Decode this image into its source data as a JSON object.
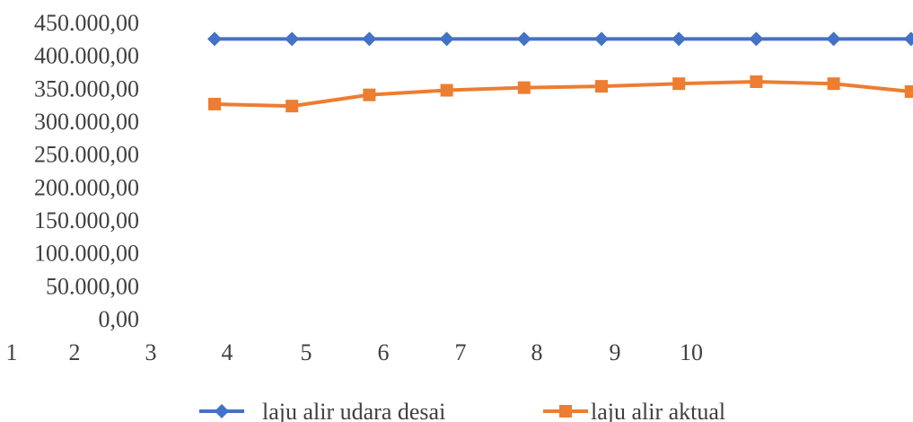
{
  "chart_data": {
    "type": "line",
    "title": "",
    "xlabel": "",
    "ylabel": "",
    "x_tick_labels": [
      "1",
      "2",
      "3",
      "4",
      "5",
      "6",
      "7",
      "8",
      "9",
      "10"
    ],
    "y_tick_labels": [
      "0,00",
      "50.000,00",
      "100.000,00",
      "150.000,00",
      "200.000,00",
      "250.000,00",
      "300.000,00",
      "350.000,00",
      "400.000,00",
      "450.000,00"
    ],
    "ylim": [
      0,
      450000
    ],
    "grid": false,
    "legend_position": "bottom",
    "series": [
      {
        "name": "laju alir udara desai",
        "color": "#4472C4",
        "marker": "diamond",
        "values": [
          425000,
          425000,
          425000,
          425000,
          425000,
          425000,
          425000,
          425000,
          425000,
          425000
        ]
      },
      {
        "name": "laju alir aktual",
        "color": "#ED7D31",
        "marker": "square",
        "values": [
          326000,
          323000,
          340000,
          347000,
          351000,
          353000,
          357000,
          360000,
          357000,
          345000
        ]
      }
    ]
  }
}
